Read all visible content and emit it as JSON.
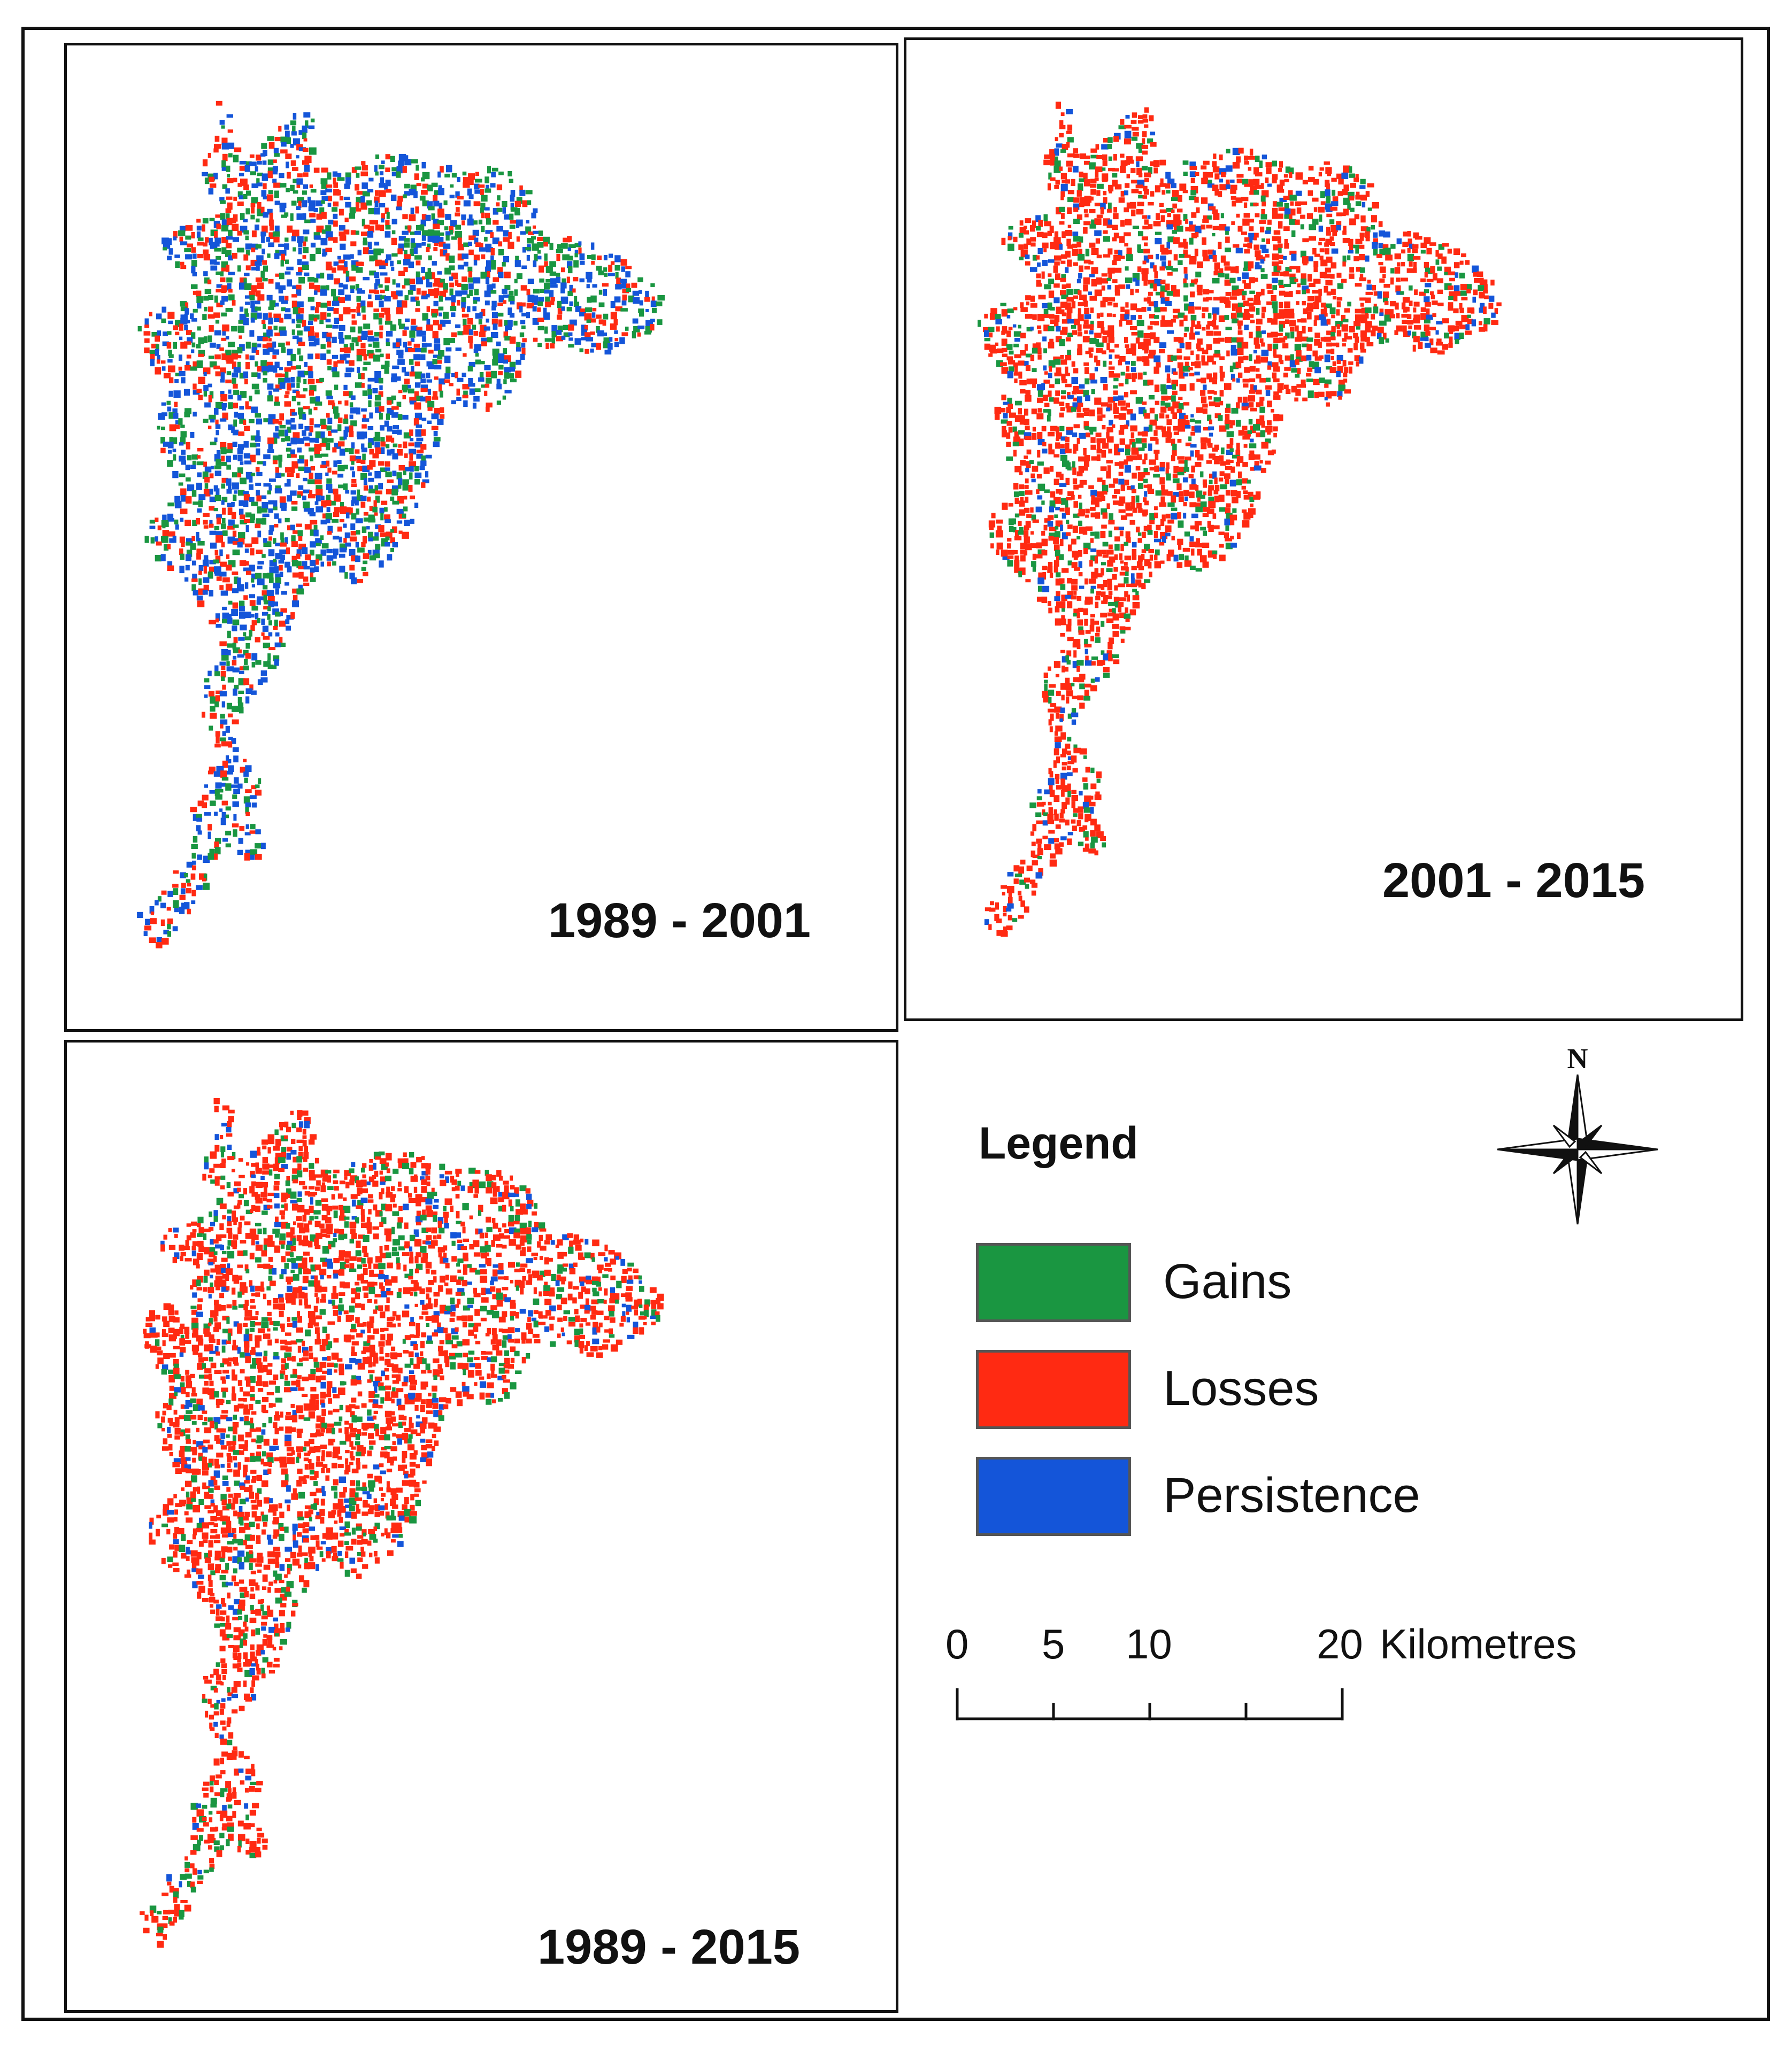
{
  "maps": [
    {
      "period": "1989 - 2001",
      "mix": {
        "gains": 0.3,
        "losses": 0.3,
        "persistence": 0.4
      }
    },
    {
      "period": "2001 - 2015",
      "mix": {
        "gains": 0.15,
        "losses": 0.75,
        "persistence": 0.1
      }
    },
    {
      "period": "1989 - 2015",
      "mix": {
        "gains": 0.18,
        "losses": 0.72,
        "persistence": 0.1
      }
    }
  ],
  "legend": {
    "title": "Legend",
    "items": [
      {
        "key": "gains",
        "label": "Gains",
        "color": "#1a9641"
      },
      {
        "key": "losses",
        "label": "Losses",
        "color": "#ff2a12"
      },
      {
        "key": "persistence",
        "label": "Persistence",
        "color": "#1455d9"
      }
    ]
  },
  "scale_bar": {
    "ticks": [
      "0",
      "5",
      "10",
      "",
      "20"
    ],
    "unit": "Kilometres"
  },
  "north_arrow": {
    "label": "N",
    "icon": "north-arrow-icon"
  }
}
